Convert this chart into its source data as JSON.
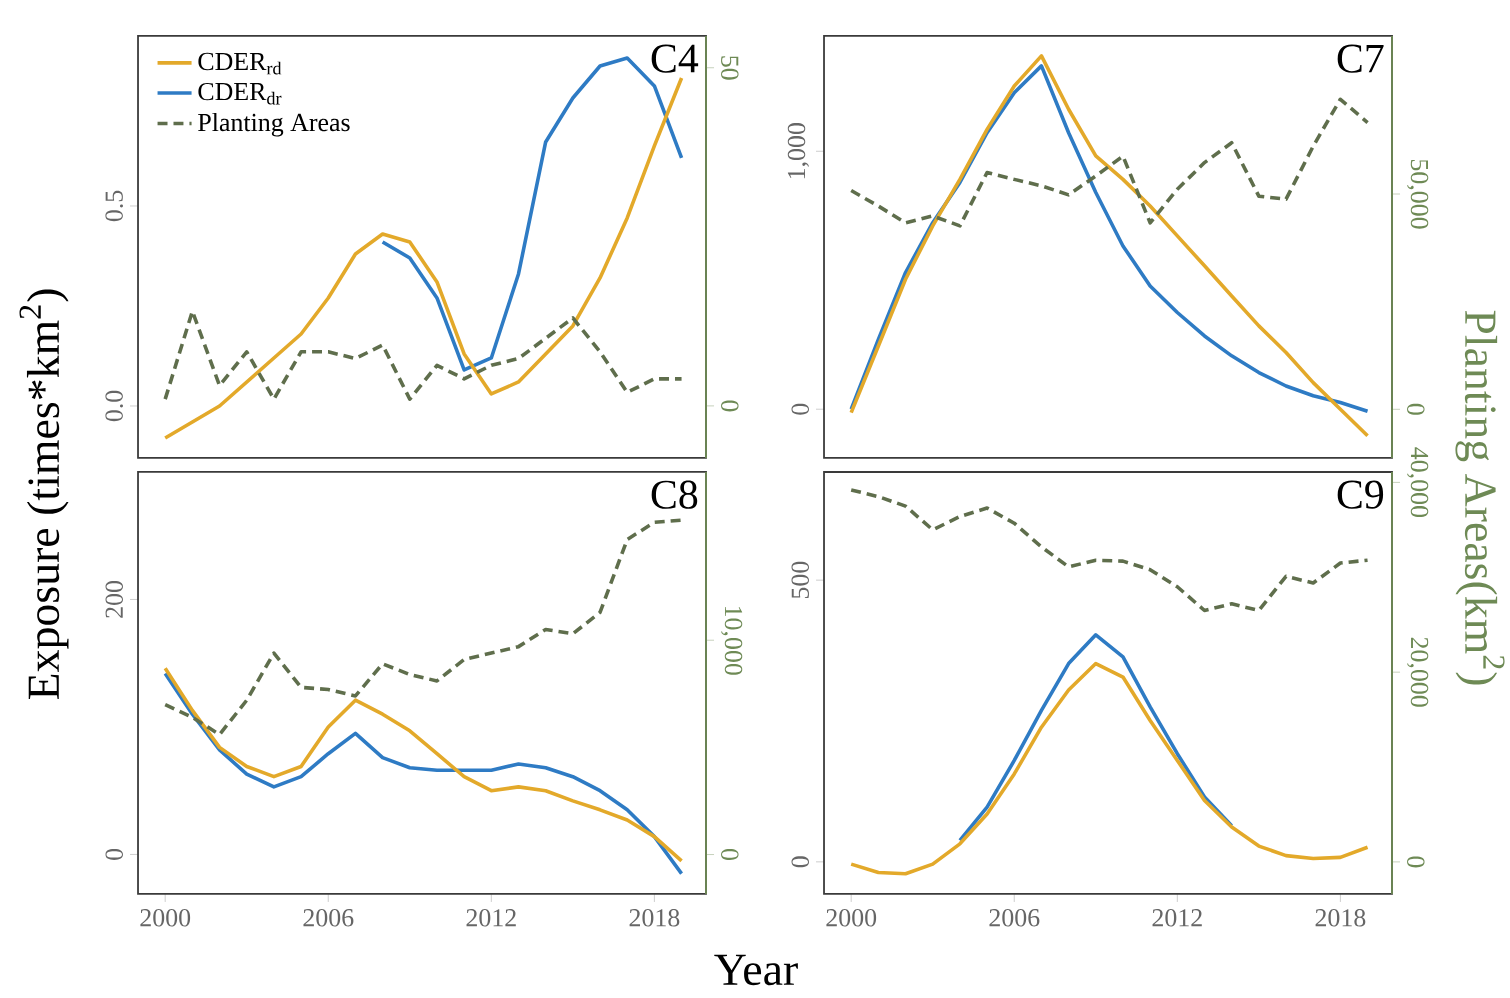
{
  "chart_data": [
    {
      "type": "line",
      "title": "C4",
      "x": [
        2000,
        2001,
        2002,
        2003,
        2004,
        2005,
        2006,
        2007,
        2008,
        2009,
        2010,
        2011,
        2012,
        2013,
        2014,
        2015,
        2016,
        2017,
        2018,
        2019
      ],
      "xlim": [
        1999,
        2019.9
      ],
      "xticks": [
        2000,
        2006,
        2012,
        2018
      ],
      "tick_labels": "y",
      "ylim": [
        -0.13,
        0.925
      ],
      "yticks": [
        {
          "value": 0,
          "label": "0.0"
        },
        0.5
      ],
      "y2lim": [
        -7.7,
        54.7
      ],
      "y2ticks": [
        0,
        50
      ],
      "legend": "top left",
      "series": [
        {
          "name": "CDER$_{rd}$",
          "color": "#e3a92a",
          "line_style": "solid",
          "values": [
            -0.08,
            -0.04,
            0.0,
            0.06,
            0.12,
            0.18,
            0.27,
            0.38,
            0.43,
            0.41,
            0.31,
            0.13,
            0.03,
            0.06,
            0.13,
            0.2,
            0.32,
            0.47,
            0.65,
            0.82
          ]
        },
        {
          "name": "CDER$_{dr}$",
          "color": "#2e7bc4",
          "line_style": "solid",
          "values": [
            null,
            null,
            null,
            null,
            null,
            null,
            null,
            null,
            0.41,
            0.37,
            0.27,
            0.09,
            0.12,
            0.33,
            0.66,
            0.77,
            0.85,
            0.87,
            0.8,
            0.62
          ]
        },
        {
          "name": "Planting Areas",
          "color": "#5f6e4c",
          "line_style": "dashed",
          "axis": "y2",
          "values": [
            1,
            14,
            3,
            8,
            1,
            8,
            8,
            7,
            9,
            1,
            6,
            4,
            6,
            7,
            10,
            13,
            8,
            2,
            4,
            4
          ]
        }
      ]
    },
    {
      "type": "line",
      "title": "C7",
      "y2label": "Planting Areas(km$^{2}$)",
      "x": [
        2000,
        2001,
        2002,
        2003,
        2004,
        2005,
        2006,
        2007,
        2008,
        2009,
        2010,
        2011,
        2012,
        2013,
        2014,
        2015,
        2016,
        2017,
        2018,
        2019
      ],
      "xlim": [
        1999,
        2019.9
      ],
      "xticks": [
        2000,
        2006,
        2012,
        2018
      ],
      "tick_labels": "y",
      "ylim": [
        -189,
        1447
      ],
      "yticks": [
        0,
        {
          "value": 1000,
          "label": "1,000"
        }
      ],
      "y2lim": [
        -11300,
        86700
      ],
      "y2ticks": [
        0,
        {
          "value": 50000,
          "label": "50,000"
        }
      ],
      "series": [
        {
          "color": "#e3a92a",
          "line_style": "solid",
          "values": [
            -13,
            245,
            504,
            711,
            891,
            1085,
            1253,
            1370,
            1163,
            982,
            891,
            788,
            672,
            556,
            439,
            323,
            220,
            103,
            0,
            -103
          ]
        },
        {
          "color": "#2e7bc4",
          "line_style": "solid",
          "values": [
            0,
            271,
            530,
            723,
            879,
            1072,
            1227,
            1331,
            1072,
            840,
            633,
            478,
            375,
            284,
            207,
            142,
            90,
            52,
            26,
            -8
          ]
        },
        {
          "color": "#5f6e4c",
          "line_style": "dashed",
          "axis": "y2",
          "values": [
            50800,
            47200,
            43300,
            44900,
            42600,
            55000,
            53400,
            51900,
            49800,
            54200,
            58800,
            43300,
            51100,
            57300,
            61900,
            49500,
            48800,
            61100,
            72000,
            66600
          ]
        }
      ]
    },
    {
      "type": "line",
      "title": "C8",
      "xlabel": "Year",
      "ylabel": "Exposure (times*km$^{2}$)",
      "x": [
        2000,
        2001,
        2002,
        2003,
        2004,
        2005,
        2006,
        2007,
        2008,
        2009,
        2010,
        2011,
        2012,
        2013,
        2014,
        2015,
        2016,
        2017,
        2018,
        2019
      ],
      "xlim": [
        1999,
        2019.9
      ],
      "xticks": [
        2000,
        2006,
        2012,
        2018
      ],
      "ylim": [
        -31,
        300
      ],
      "yticks": [
        0,
        200
      ],
      "y2lim": [
        -1840,
        17850
      ],
      "y2ticks": [
        0,
        {
          "value": 10000,
          "label": "10,000"
        }
      ],
      "series": [
        {
          "color": "#e3a92a",
          "line_style": "solid",
          "values": [
            146,
            113,
            84,
            69,
            61,
            69,
            100,
            121,
            110,
            97,
            79,
            61,
            50,
            53,
            50,
            42,
            35,
            27,
            14,
            -5
          ]
        },
        {
          "color": "#2e7bc4",
          "line_style": "solid",
          "values": [
            142,
            110,
            82,
            63,
            53,
            61,
            79,
            95,
            76,
            68,
            66,
            66,
            66,
            71,
            68,
            61,
            50,
            35,
            14,
            -15
          ]
        },
        {
          "color": "#5f6e4c",
          "line_style": "dashed",
          "axis": "y2",
          "values": [
            7000,
            6400,
            5600,
            7200,
            9400,
            7800,
            7700,
            7400,
            8900,
            8400,
            8100,
            9100,
            9400,
            9700,
            10500,
            10300,
            11300,
            14700,
            15500,
            15600
          ]
        }
      ]
    },
    {
      "type": "line",
      "title": "C9",
      "x": [
        2000,
        2001,
        2002,
        2003,
        2004,
        2005,
        2006,
        2007,
        2008,
        2009,
        2010,
        2011,
        2012,
        2013,
        2014,
        2015,
        2016,
        2017,
        2018,
        2019
      ],
      "xlim": [
        1999,
        2019.9
      ],
      "xticks": [
        2000,
        2006,
        2012,
        2018
      ],
      "ylim": [
        -57,
        692
      ],
      "yticks": [
        0,
        500
      ],
      "y2lim": [
        -3380,
        41100
      ],
      "y2ticks": [
        0,
        {
          "value": 20000,
          "label": "20,000"
        },
        {
          "value": 40000,
          "label": "40,000"
        }
      ],
      "series": [
        {
          "color": "#e3a92a",
          "line_style": "solid",
          "values": [
            -4,
            -19,
            -21,
            -4,
            32,
            85,
            156,
            239,
            305,
            352,
            328,
            251,
            180,
            109,
            62,
            28,
            11,
            6,
            8,
            26
          ]
        },
        {
          "color": "#2e7bc4",
          "line_style": "solid",
          "values": [
            null,
            null,
            null,
            null,
            38,
            97,
            180,
            269,
            352,
            403,
            364,
            275,
            192,
            115,
            64,
            null,
            null,
            null,
            null,
            null
          ]
        },
        {
          "color": "#5f6e4c",
          "line_style": "dashed",
          "axis": "y2",
          "values": [
            39200,
            38500,
            37500,
            35000,
            36400,
            37300,
            35700,
            33200,
            31100,
            31800,
            31700,
            30800,
            29000,
            26500,
            27200,
            26500,
            30100,
            29400,
            31500,
            31800
          ]
        }
      ]
    }
  ]
}
